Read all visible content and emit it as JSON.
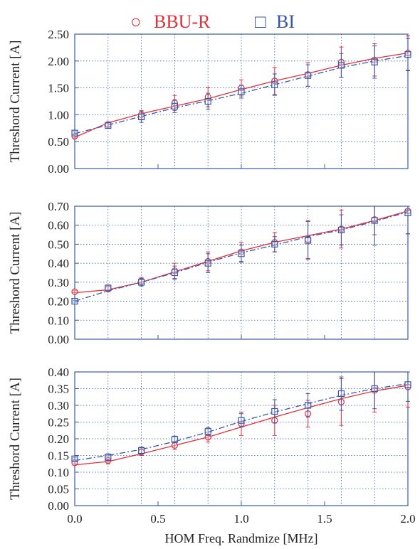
{
  "legend": [
    {
      "symbol": "○",
      "label": "BBU-R",
      "color": "#e0303a"
    },
    {
      "symbol": "□",
      "label": "BI",
      "color": "#3556a8"
    }
  ],
  "colors": {
    "bbu_r": "#e0303a",
    "bi": "#3556a8",
    "frame": "#3a5a9c",
    "grid": "#3a5a9c"
  },
  "chart_data": [
    {
      "type": "line",
      "xlabel": "",
      "ylabel": "Threshord Current [A]",
      "xlim": [
        0,
        2.0
      ],
      "ylim": [
        0,
        2.5
      ],
      "grid": true,
      "legend_position": "top",
      "yticks": [
        "0.00",
        "0.50",
        "1.00",
        "1.50",
        "2.00",
        "2.50"
      ],
      "xticks": [],
      "series": [
        {
          "name": "BBU-R",
          "marker": "circle",
          "x": [
            0.0,
            0.2,
            0.4,
            0.6,
            0.8,
            1.0,
            1.2,
            1.4,
            1.6,
            1.8,
            2.0
          ],
          "values": [
            0.6,
            0.82,
            1.0,
            1.22,
            1.33,
            1.5,
            1.63,
            1.75,
            1.98,
            2.02,
            2.15
          ],
          "errors": [
            0.03,
            0.04,
            0.08,
            0.14,
            0.18,
            0.15,
            0.25,
            0.22,
            0.28,
            0.3,
            0.32
          ],
          "fit": [
            0.58,
            0.85,
            1.02,
            1.16,
            1.3,
            1.47,
            1.63,
            1.77,
            1.92,
            2.05,
            2.15
          ]
        },
        {
          "name": "BI",
          "marker": "square",
          "x": [
            0.0,
            0.2,
            0.4,
            0.6,
            0.8,
            1.0,
            1.2,
            1.4,
            1.6,
            1.8,
            2.0
          ],
          "values": [
            0.66,
            0.8,
            0.96,
            1.16,
            1.25,
            1.43,
            1.56,
            1.73,
            1.92,
            1.98,
            2.12
          ],
          "errors": [
            0.02,
            0.05,
            0.1,
            0.12,
            0.15,
            0.12,
            0.2,
            0.2,
            0.22,
            0.3,
            0.3
          ],
          "fit": [
            0.65,
            0.81,
            0.97,
            1.13,
            1.26,
            1.4,
            1.56,
            1.72,
            1.88,
            2.0,
            2.1
          ]
        }
      ]
    },
    {
      "type": "line",
      "xlabel": "",
      "ylabel": "Threshord Current [A]",
      "xlim": [
        0,
        2.0
      ],
      "ylim": [
        0,
        0.7
      ],
      "grid": true,
      "yticks": [
        "0.00",
        "0.10",
        "0.20",
        "0.30",
        "0.40",
        "0.50",
        "0.60",
        "0.70"
      ],
      "xticks": [],
      "series": [
        {
          "name": "BBU-R",
          "marker": "circle",
          "x": [
            0.0,
            0.2,
            0.4,
            0.6,
            0.8,
            1.0,
            1.2,
            1.4,
            1.6,
            1.8,
            2.0
          ],
          "values": [
            0.25,
            0.265,
            0.305,
            0.36,
            0.41,
            0.46,
            0.51,
            0.525,
            0.58,
            0.63,
            0.675
          ],
          "errors": [
            0.005,
            0.015,
            0.02,
            0.04,
            0.05,
            0.05,
            0.05,
            0.1,
            0.1,
            0.08,
            0.12
          ],
          "fit": [
            0.245,
            0.26,
            0.3,
            0.355,
            0.41,
            0.465,
            0.51,
            0.545,
            0.58,
            0.625,
            0.675
          ]
        },
        {
          "name": "BI",
          "marker": "square",
          "x": [
            0.0,
            0.2,
            0.4,
            0.6,
            0.8,
            1.0,
            1.2,
            1.4,
            1.6,
            1.8,
            2.0
          ],
          "values": [
            0.2,
            0.27,
            0.3,
            0.35,
            0.4,
            0.45,
            0.5,
            0.52,
            0.575,
            0.625,
            0.665
          ],
          "errors": [
            0.005,
            0.015,
            0.02,
            0.035,
            0.05,
            0.045,
            0.04,
            0.1,
            0.08,
            0.13,
            0.11
          ],
          "fit": [
            0.2,
            0.255,
            0.3,
            0.35,
            0.405,
            0.455,
            0.495,
            0.54,
            0.575,
            0.62,
            0.67
          ]
        }
      ]
    },
    {
      "type": "line",
      "xlabel": "HOM Freq. Randmize [MHz]",
      "ylabel": "Threshord Current [A]",
      "xlim": [
        0,
        2.0
      ],
      "ylim": [
        0,
        0.4
      ],
      "grid": true,
      "yticks": [
        "0.00",
        "0.05",
        "0.10",
        "0.15",
        "0.20",
        "0.25",
        "0.30",
        "0.35",
        "0.40"
      ],
      "xticks": [
        "0.0",
        "0.5",
        "1.0",
        "1.5",
        "2.0"
      ],
      "series": [
        {
          "name": "BBU-R",
          "marker": "circle",
          "x": [
            0.0,
            0.2,
            0.4,
            0.6,
            0.8,
            1.0,
            1.2,
            1.4,
            1.6,
            1.8,
            2.0
          ],
          "values": [
            0.128,
            0.135,
            0.16,
            0.18,
            0.205,
            0.245,
            0.255,
            0.275,
            0.31,
            0.345,
            0.355
          ],
          "errors": [
            0.003,
            0.01,
            0.01,
            0.012,
            0.015,
            0.035,
            0.045,
            0.04,
            0.07,
            0.065,
            0.06
          ],
          "fit": [
            0.122,
            0.132,
            0.155,
            0.18,
            0.205,
            0.235,
            0.265,
            0.293,
            0.32,
            0.343,
            0.36
          ]
        },
        {
          "name": "BI",
          "marker": "square",
          "x": [
            0.0,
            0.2,
            0.4,
            0.6,
            0.8,
            1.0,
            1.2,
            1.4,
            1.6,
            1.8,
            2.0
          ],
          "values": [
            0.14,
            0.145,
            0.165,
            0.198,
            0.222,
            0.255,
            0.282,
            0.3,
            0.335,
            0.35,
            0.362
          ],
          "errors": [
            0.003,
            0.01,
            0.01,
            0.01,
            0.012,
            0.02,
            0.035,
            0.035,
            0.05,
            0.06,
            0.05
          ],
          "fit": [
            0.135,
            0.15,
            0.168,
            0.192,
            0.22,
            0.252,
            0.28,
            0.305,
            0.33,
            0.35,
            0.365
          ]
        }
      ]
    }
  ]
}
